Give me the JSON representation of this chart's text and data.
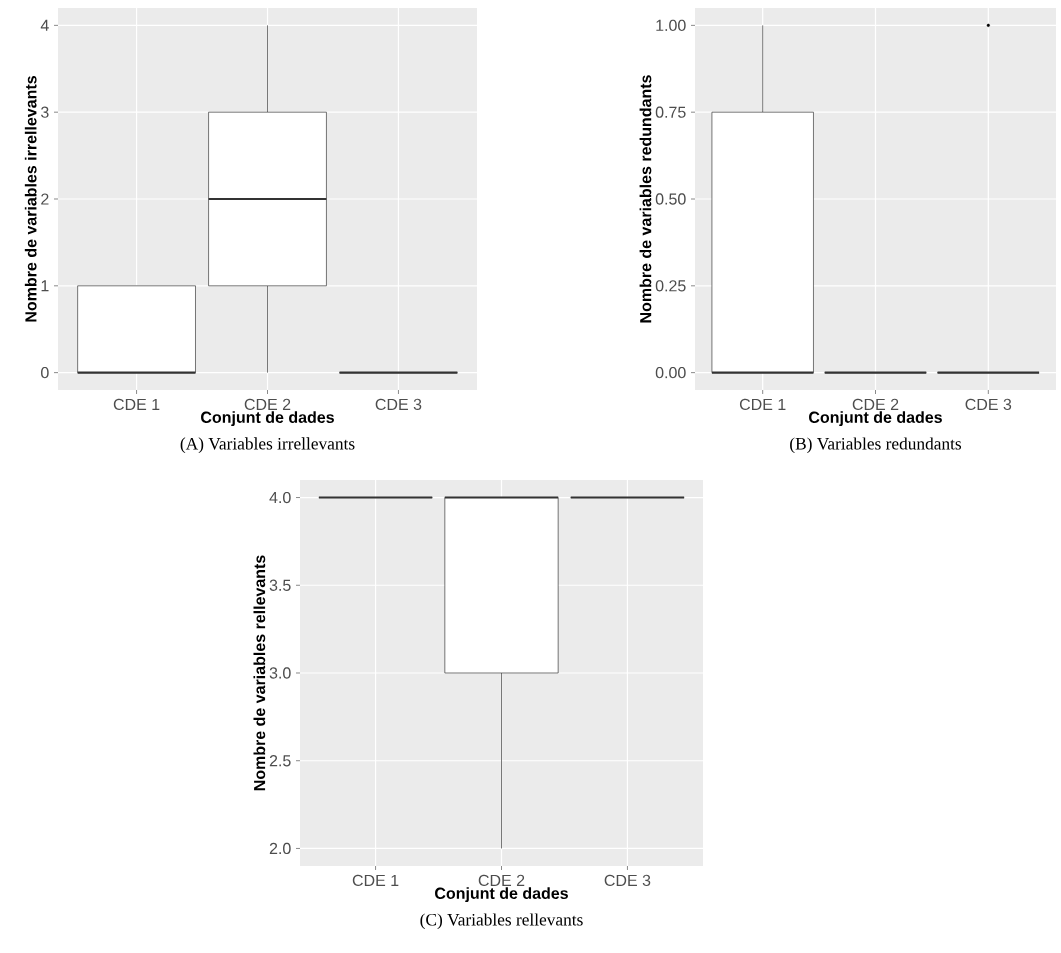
{
  "chart_data": [
    {
      "type": "box",
      "title": "(A) Variables irrellevants",
      "xlabel": "Conjunt de dades",
      "ylabel": "Nombre de variables irrellevants",
      "categories": [
        "CDE 1",
        "CDE 2",
        "CDE 3"
      ],
      "boxes": [
        {
          "low": 0,
          "q1": 0,
          "median": 0,
          "q3": 1,
          "high": 1
        },
        {
          "low": 0,
          "q1": 1,
          "median": 2,
          "q3": 3,
          "high": 4
        },
        {
          "low": 0,
          "q1": 0,
          "median": 0,
          "q3": 0,
          "high": 0
        }
      ],
      "ylim": [
        -0.2,
        4.2
      ],
      "yticks": [
        0,
        1,
        2,
        3,
        4
      ],
      "grid": true
    },
    {
      "type": "box",
      "title": "(B) Variables redundants",
      "xlabel": "Conjunt de dades",
      "ylabel": "Nombre de variables redundants",
      "categories": [
        "CDE 1",
        "CDE 2",
        "CDE 3"
      ],
      "boxes": [
        {
          "low": 0,
          "q1": 0,
          "median": 0,
          "q3": 0.75,
          "high": 1
        },
        {
          "low": 0,
          "q1": 0,
          "median": 0,
          "q3": 0,
          "high": 0
        },
        {
          "low": 0,
          "q1": 0,
          "median": 0,
          "q3": 0,
          "high": 0,
          "outliers": [
            1
          ]
        }
      ],
      "ylim": [
        -0.05,
        1.05
      ],
      "yticks": [
        {
          "value": 0,
          "label": "0.00"
        },
        {
          "value": 0.25,
          "label": "0.25"
        },
        {
          "value": 0.5,
          "label": "0.50"
        },
        {
          "value": 0.75,
          "label": "0.75"
        },
        {
          "value": 1,
          "label": "1.00"
        }
      ],
      "grid": true
    },
    {
      "type": "box",
      "title": "(C) Variables rellevants",
      "xlabel": "Conjunt de dades",
      "ylabel": "Nombre de variables rellevants",
      "categories": [
        "CDE 1",
        "CDE 2",
        "CDE 3"
      ],
      "boxes": [
        {
          "low": 4,
          "q1": 4,
          "median": 4,
          "q3": 4,
          "high": 4
        },
        {
          "low": 2,
          "q1": 3,
          "median": 4,
          "q3": 4,
          "high": 4
        },
        {
          "low": 4,
          "q1": 4,
          "median": 4,
          "q3": 4,
          "high": 4
        }
      ],
      "ylim": [
        1.9,
        4.1
      ],
      "yticks": [
        {
          "value": 2,
          "label": "2.0"
        },
        {
          "value": 2.5,
          "label": "2.5"
        },
        {
          "value": 3,
          "label": "3.0"
        },
        {
          "value": 3.5,
          "label": "3.5"
        },
        {
          "value": 4,
          "label": "4.0"
        }
      ],
      "grid": true
    }
  ]
}
